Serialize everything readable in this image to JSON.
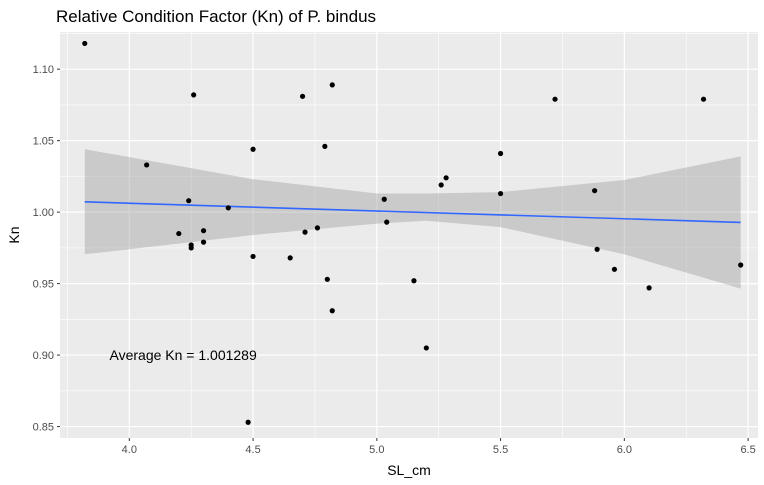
{
  "chart_data": {
    "type": "scatter",
    "title": "Relative Condition Factor (Kn) of P. bindus",
    "xlabel": "SL_cm",
    "ylabel": "Kn",
    "xlim": [
      3.72,
      6.54
    ],
    "ylim": [
      0.842,
      1.126
    ],
    "x_ticks": [
      4.0,
      4.5,
      5.0,
      5.5,
      6.0,
      6.5
    ],
    "x_tick_labels": [
      "4.0",
      "4.5",
      "5.0",
      "5.5",
      "6.0",
      "6.5"
    ],
    "y_ticks": [
      0.85,
      0.9,
      0.95,
      1.0,
      1.05,
      1.1
    ],
    "y_tick_labels": [
      "0.85",
      "0.90",
      "0.95",
      "1.00",
      "1.05",
      "1.10"
    ],
    "grid": true,
    "background": "#ebebeb",
    "point_color": "#000000",
    "points": [
      {
        "x": 3.82,
        "y": 1.118
      },
      {
        "x": 4.07,
        "y": 1.033
      },
      {
        "x": 4.2,
        "y": 0.985
      },
      {
        "x": 4.24,
        "y": 1.008
      },
      {
        "x": 4.25,
        "y": 0.977
      },
      {
        "x": 4.25,
        "y": 0.975
      },
      {
        "x": 4.26,
        "y": 1.082
      },
      {
        "x": 4.3,
        "y": 0.987
      },
      {
        "x": 4.3,
        "y": 0.979
      },
      {
        "x": 4.4,
        "y": 1.003
      },
      {
        "x": 4.48,
        "y": 0.853
      },
      {
        "x": 4.5,
        "y": 1.044
      },
      {
        "x": 4.5,
        "y": 0.969
      },
      {
        "x": 4.65,
        "y": 0.968
      },
      {
        "x": 4.7,
        "y": 1.081
      },
      {
        "x": 4.71,
        "y": 0.986
      },
      {
        "x": 4.76,
        "y": 0.989
      },
      {
        "x": 4.79,
        "y": 1.046
      },
      {
        "x": 4.8,
        "y": 0.953
      },
      {
        "x": 4.82,
        "y": 1.089
      },
      {
        "x": 4.82,
        "y": 0.931
      },
      {
        "x": 5.03,
        "y": 1.009
      },
      {
        "x": 5.04,
        "y": 0.993
      },
      {
        "x": 5.15,
        "y": 0.952
      },
      {
        "x": 5.2,
        "y": 0.905
      },
      {
        "x": 5.26,
        "y": 1.019
      },
      {
        "x": 5.28,
        "y": 1.024
      },
      {
        "x": 5.5,
        "y": 1.041
      },
      {
        "x": 5.5,
        "y": 1.013
      },
      {
        "x": 5.72,
        "y": 1.079
      },
      {
        "x": 5.88,
        "y": 1.015
      },
      {
        "x": 5.89,
        "y": 0.974
      },
      {
        "x": 5.96,
        "y": 0.96
      },
      {
        "x": 6.1,
        "y": 0.947
      },
      {
        "x": 6.32,
        "y": 1.079
      },
      {
        "x": 6.47,
        "y": 0.963
      }
    ],
    "fit_line": {
      "method": "linear",
      "color": "#3366ff",
      "x": [
        3.82,
        6.47
      ],
      "y": [
        1.0072,
        0.9928
      ]
    },
    "confidence_band": {
      "color": "#999999",
      "x": [
        3.82,
        4.0,
        4.5,
        5.0,
        5.2,
        5.5,
        6.0,
        6.47
      ],
      "lower": [
        0.9705,
        0.974,
        0.984,
        0.992,
        0.994,
        0.9895,
        0.9705,
        0.9465
      ],
      "upper": [
        1.044,
        1.0385,
        1.023,
        1.013,
        1.013,
        1.014,
        1.0225,
        1.039
      ]
    },
    "annotations": [
      {
        "text": "Average Kn = 1.001289",
        "x": 3.92,
        "y": 0.9
      }
    ]
  }
}
